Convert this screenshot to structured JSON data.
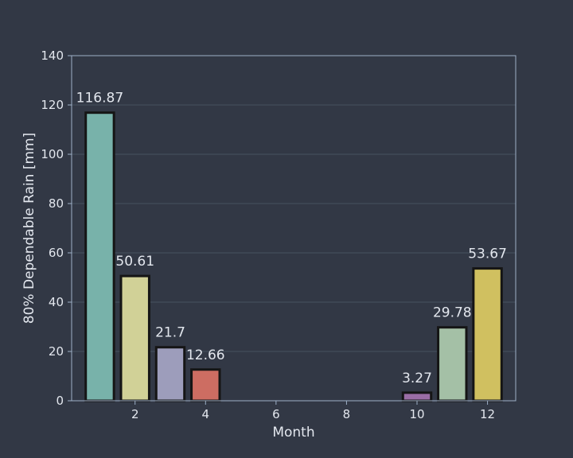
{
  "chart_data": {
    "type": "bar",
    "x": [
      1,
      2,
      3,
      4,
      5,
      6,
      7,
      8,
      9,
      10,
      11,
      12
    ],
    "values": [
      116.87,
      50.61,
      21.7,
      12.66,
      0,
      0,
      0,
      0,
      0,
      3.27,
      29.78,
      53.67
    ],
    "data_labels": [
      "116.87",
      "50.61",
      "21.7",
      "12.66",
      "",
      "",
      "",
      "",
      "",
      "3.27",
      "29.78",
      "53.67"
    ],
    "bar_colors": [
      "#78b2aa",
      "#d1d197",
      "#9d9dbb",
      "#cd6d62",
      "#6f7ea1",
      "#d3a86b",
      "#a8c67c",
      "#d2aec8",
      "#bfbfbf",
      "#9a6da5",
      "#a4c0a6",
      "#d0c060"
    ],
    "xlabel": "Month",
    "ylabel": "80% Dependable Rain [mm]",
    "xlim": [
      0.2,
      12.8
    ],
    "ylim": [
      0,
      140
    ],
    "x_ticks": [
      2,
      4,
      6,
      8,
      10,
      12
    ],
    "y_ticks": [
      0,
      20,
      40,
      60,
      80,
      100,
      120,
      140
    ],
    "grid": "horizontal",
    "colors": {
      "background": "#323845",
      "axes_edge": "#9eb0c8",
      "grid": "#47525e",
      "bar_edge": "#151515",
      "text": "#e3e7ee"
    }
  }
}
